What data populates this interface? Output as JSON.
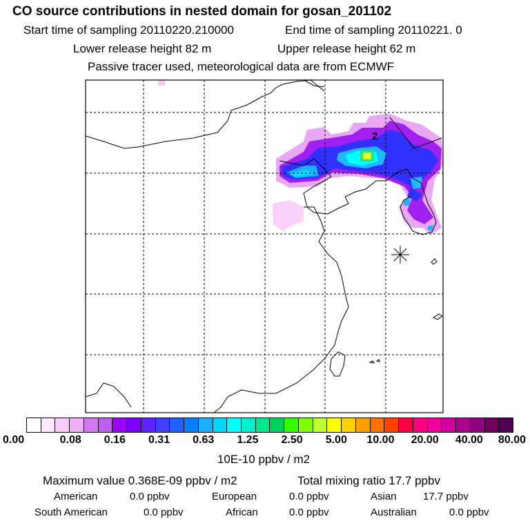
{
  "header": {
    "title": "CO  source contributions in nested domain for gosan_201102",
    "start": "Start time of sampling 20110220.210000",
    "end": "End time of sampling 20110221.     0",
    "lower": "Lower release height   82 m",
    "upper": "Upper release height   62 m",
    "note": "Passive tracer used, meteorological data are from ECMWF"
  },
  "map": {
    "marker_label": "2",
    "marker_icon": "receptor-star-icon"
  },
  "colorbar": {
    "colors": [
      "#ffffff",
      "#fde8fd",
      "#f8ccf8",
      "#f0b0f5",
      "#d478f0",
      "#c060f0",
      "#a000f5",
      "#8000ff",
      "#6020ff",
      "#4040ff",
      "#2060ff",
      "#0080ff",
      "#1ab0ff",
      "#00d8ff",
      "#00ffff",
      "#00f0d0",
      "#00e890",
      "#00d060",
      "#30ff00",
      "#80ff00",
      "#c0ff30",
      "#ffff00",
      "#ffd000",
      "#ffa000",
      "#ff7000",
      "#ff4000",
      "#ff0040",
      "#ff0080",
      "#f000a0",
      "#d000a0",
      "#b00090",
      "#900080",
      "#700060",
      "#500050"
    ],
    "tick_labels": [
      "0.00",
      "0.08",
      "0.16",
      "0.31",
      "0.63",
      "1.25",
      "2.50",
      "5.00",
      "10.00",
      "20.00",
      "40.00",
      "80.00"
    ],
    "unit": "10E-10 ppbv / m2"
  },
  "summary": {
    "maximum": "Maximum value  0.368E-09 ppbv / m2",
    "total": "Total mixing ratio       17.7 ppbv",
    "rows": [
      {
        "label": "American",
        "value": "0.0 ppbv"
      },
      {
        "label": "European",
        "value": "0.0 ppbv"
      },
      {
        "label": "Asian",
        "value": "17.7 ppbv"
      },
      {
        "label": "South American",
        "value": "0.0 ppbv"
      },
      {
        "label": "African",
        "value": "0.0 ppbv"
      },
      {
        "label": "Australian",
        "value": "0.0 ppbv"
      }
    ]
  }
}
